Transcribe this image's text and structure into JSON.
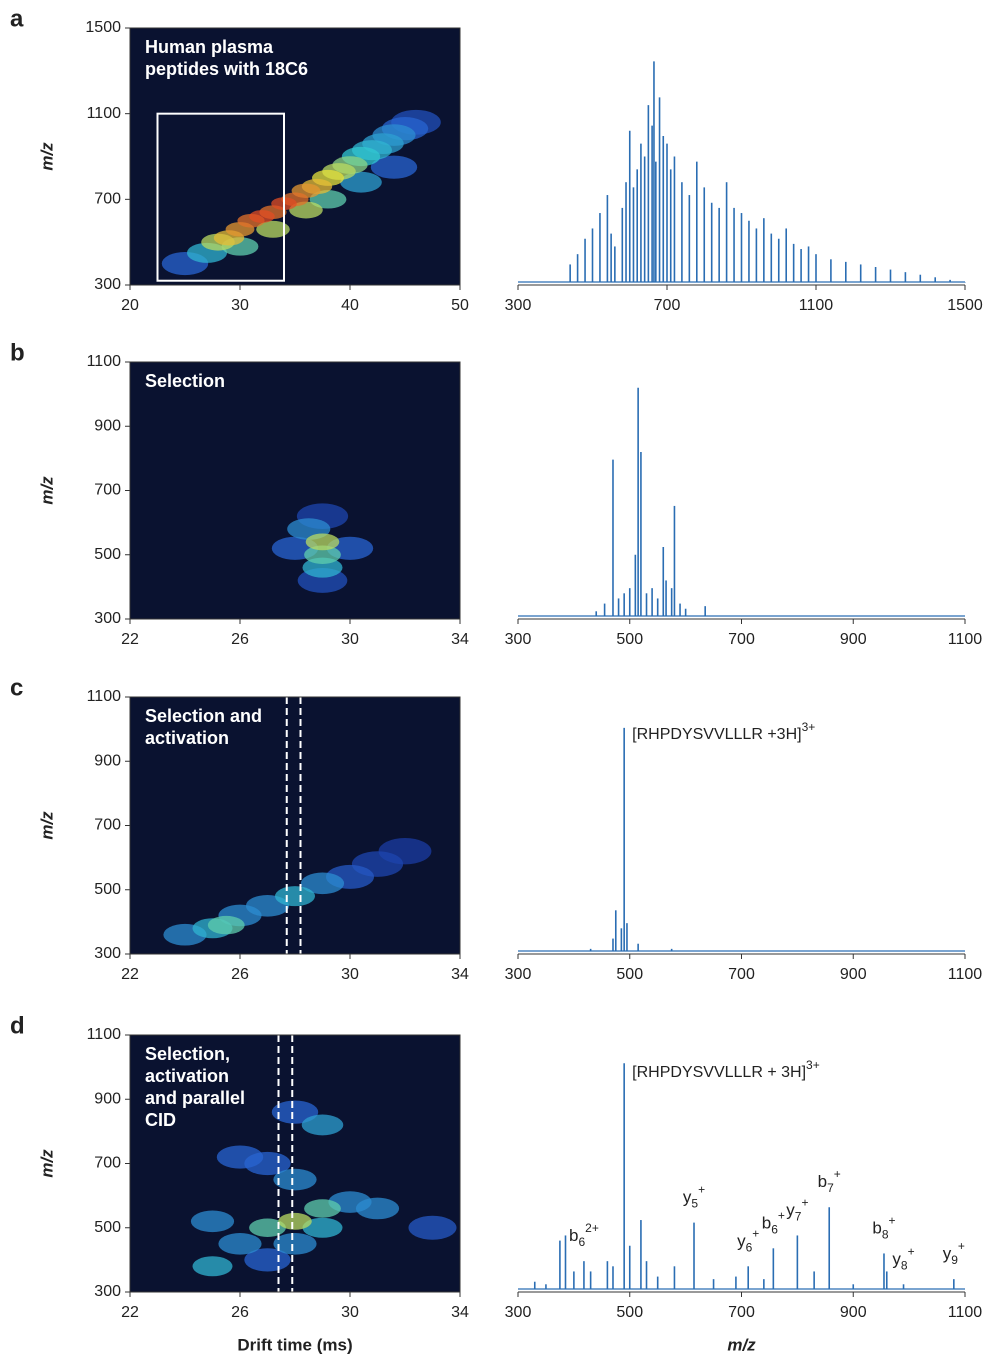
{
  "chart_data": [
    {
      "type": "heatmap",
      "panel": "a",
      "annotation": [
        "Human plasma",
        "peptides with 18C6"
      ],
      "ylabel": "m/z",
      "xlim": [
        20,
        50
      ],
      "ylim": [
        300,
        1500
      ],
      "xticks": [
        20,
        30,
        40,
        50
      ],
      "yticks": [
        300,
        700,
        1100,
        1500
      ],
      "x": [
        25,
        27,
        28,
        29,
        30,
        31,
        32,
        33,
        34,
        35,
        36,
        37,
        38,
        39,
        40,
        41,
        42,
        43,
        44,
        45,
        46,
        30,
        33,
        36,
        38,
        41,
        44
      ],
      "y": [
        400,
        450,
        500,
        520,
        560,
        600,
        620,
        640,
        680,
        700,
        740,
        760,
        800,
        830,
        860,
        900,
        930,
        960,
        1000,
        1030,
        1060,
        480,
        560,
        650,
        700,
        780,
        850
      ],
      "values": [
        30,
        50,
        70,
        80,
        85,
        90,
        95,
        90,
        95,
        90,
        85,
        80,
        75,
        70,
        65,
        55,
        50,
        45,
        40,
        30,
        20,
        60,
        70,
        70,
        60,
        45,
        30
      ],
      "selection_box": {
        "x": [
          22.5,
          34
        ],
        "y": [
          320,
          1100
        ]
      }
    },
    {
      "type": "spectrum",
      "color": "#2a6db3",
      "xlim": [
        300,
        1500
      ],
      "xticks": [
        300,
        700,
        1100,
        1500
      ],
      "ylim": [
        0,
        100
      ],
      "x": [
        440,
        460,
        480,
        500,
        520,
        540,
        550,
        560,
        580,
        590,
        600,
        610,
        620,
        630,
        640,
        650,
        660,
        665,
        670,
        680,
        690,
        700,
        710,
        720,
        740,
        760,
        780,
        800,
        820,
        840,
        860,
        880,
        900,
        920,
        940,
        960,
        980,
        1000,
        1020,
        1040,
        1060,
        1080,
        1100,
        1140,
        1180,
        1220,
        1260,
        1300,
        1340,
        1380,
        1420,
        1460,
        1500
      ],
      "values": [
        8,
        12,
        18,
        22,
        28,
        35,
        20,
        15,
        30,
        40,
        60,
        38,
        45,
        55,
        50,
        70,
        62,
        87,
        48,
        73,
        58,
        55,
        45,
        50,
        40,
        35,
        48,
        38,
        32,
        30,
        40,
        30,
        28,
        25,
        22,
        26,
        20,
        18,
        22,
        16,
        14,
        15,
        12,
        10,
        9,
        8,
        7,
        6,
        5,
        4,
        3,
        2,
        1
      ]
    },
    {
      "type": "heatmap",
      "panel": "b",
      "annotation": [
        "Selection"
      ],
      "ylabel": "m/z",
      "xlim": [
        22,
        34
      ],
      "ylim": [
        300,
        1100
      ],
      "xticks": [
        22,
        26,
        30,
        34
      ],
      "yticks": [
        300,
        500,
        700,
        900,
        1100
      ],
      "x": [
        29,
        29,
        29,
        28.5,
        28,
        30,
        29,
        29
      ],
      "y": [
        500,
        540,
        460,
        580,
        520,
        520,
        420,
        620
      ],
      "values": [
        60,
        70,
        50,
        40,
        30,
        30,
        20,
        15
      ]
    },
    {
      "type": "spectrum",
      "color": "#2a6db3",
      "xlim": [
        300,
        1100
      ],
      "xticks": [
        300,
        500,
        700,
        900,
        1100
      ],
      "ylim": [
        0,
        100
      ],
      "x": [
        440,
        455,
        470,
        480,
        490,
        500,
        510,
        515,
        520,
        530,
        540,
        550,
        560,
        565,
        575,
        580,
        590,
        600,
        635
      ],
      "values": [
        3,
        6,
        62,
        8,
        10,
        12,
        25,
        90,
        65,
        10,
        12,
        8,
        28,
        15,
        12,
        44,
        6,
        4,
        5
      ]
    },
    {
      "type": "heatmap",
      "panel": "c",
      "annotation": [
        "Selection and",
        "activation"
      ],
      "ylabel": "m/z",
      "xlim": [
        22,
        34
      ],
      "ylim": [
        300,
        1100
      ],
      "xticks": [
        22,
        26,
        30,
        34
      ],
      "yticks": [
        300,
        500,
        700,
        900,
        1100
      ],
      "x": [
        24,
        25,
        26,
        27,
        28,
        29,
        30,
        31,
        32,
        25.5
      ],
      "y": [
        360,
        380,
        420,
        450,
        480,
        520,
        540,
        580,
        620,
        390
      ],
      "values": [
        40,
        50,
        40,
        40,
        50,
        40,
        25,
        15,
        10,
        60
      ],
      "gate_lines": [
        27.7,
        28.2
      ]
    },
    {
      "type": "spectrum",
      "color": "#2a6db3",
      "xlim": [
        300,
        1100
      ],
      "xticks": [
        300,
        500,
        700,
        900,
        1100
      ],
      "ylim": [
        0,
        100
      ],
      "x": [
        430,
        470,
        475,
        485,
        490,
        495,
        515,
        575
      ],
      "values": [
        2,
        6,
        17,
        10,
        88,
        12,
        4,
        2
      ],
      "precursor": {
        "x": 490,
        "text": "[RHPDYSVVLLLR +3H]",
        "sup": "3+"
      }
    },
    {
      "type": "heatmap",
      "panel": "d",
      "annotation": [
        "Selection,",
        "activation",
        "and parallel",
        "CID"
      ],
      "ylabel": "m/z",
      "xlabel": "Drift time (ms)",
      "xlim": [
        22,
        34
      ],
      "ylim": [
        300,
        1100
      ],
      "xticks": [
        22,
        26,
        30,
        34
      ],
      "yticks": [
        300,
        500,
        700,
        900,
        1100
      ],
      "x": [
        25,
        26,
        27,
        28,
        29,
        30,
        28,
        27,
        29,
        28,
        26,
        25,
        31,
        33,
        29,
        28,
        27
      ],
      "y": [
        380,
        450,
        500,
        520,
        560,
        580,
        650,
        700,
        820,
        860,
        720,
        520,
        560,
        500,
        500,
        450,
        400
      ],
      "values": [
        50,
        40,
        60,
        70,
        60,
        40,
        40,
        30,
        45,
        30,
        30,
        40,
        40,
        25,
        50,
        40,
        30
      ],
      "gate_lines": [
        27.4,
        27.9
      ]
    },
    {
      "type": "spectrum",
      "color": "#2a6db3",
      "xlabel": "m/z",
      "xlim": [
        300,
        1100
      ],
      "xticks": [
        300,
        500,
        700,
        900,
        1100
      ],
      "ylim": [
        0,
        100
      ],
      "x": [
        330,
        350,
        375,
        385,
        400,
        418,
        430,
        460,
        470,
        490,
        500,
        520,
        530,
        550,
        580,
        615,
        650,
        690,
        712,
        740,
        757,
        800,
        830,
        857,
        900,
        955,
        960,
        990,
        1080
      ],
      "values": [
        4,
        3,
        20,
        22,
        8,
        12,
        8,
        12,
        10,
        89,
        18,
        28,
        12,
        6,
        10,
        27,
        5,
        6,
        10,
        5,
        17,
        22,
        8,
        33,
        3,
        15,
        8,
        3,
        5
      ],
      "precursor": {
        "x": 490,
        "text": "[RHPDYSVVLLLR + 3H]",
        "sup": "3+"
      },
      "peak_labels": [
        {
          "x": 418,
          "ion": "b",
          "sub": "6",
          "sup": "2+"
        },
        {
          "x": 615,
          "ion": "y",
          "sub": "5",
          "sup": "+"
        },
        {
          "x": 712,
          "ion": "y",
          "sub": "6",
          "sup": "+"
        },
        {
          "x": 757,
          "ion": "b",
          "sub": "6",
          "sup": "+"
        },
        {
          "x": 800,
          "ion": "y",
          "sub": "7",
          "sup": "+"
        },
        {
          "x": 857,
          "ion": "b",
          "sub": "7",
          "sup": "+"
        },
        {
          "x": 955,
          "ion": "b",
          "sub": "8",
          "sup": "+"
        },
        {
          "x": 990,
          "ion": "y",
          "sub": "8",
          "sup": "+"
        },
        {
          "x": 1080,
          "ion": "y",
          "sub": "9",
          "sup": "+"
        }
      ]
    }
  ]
}
